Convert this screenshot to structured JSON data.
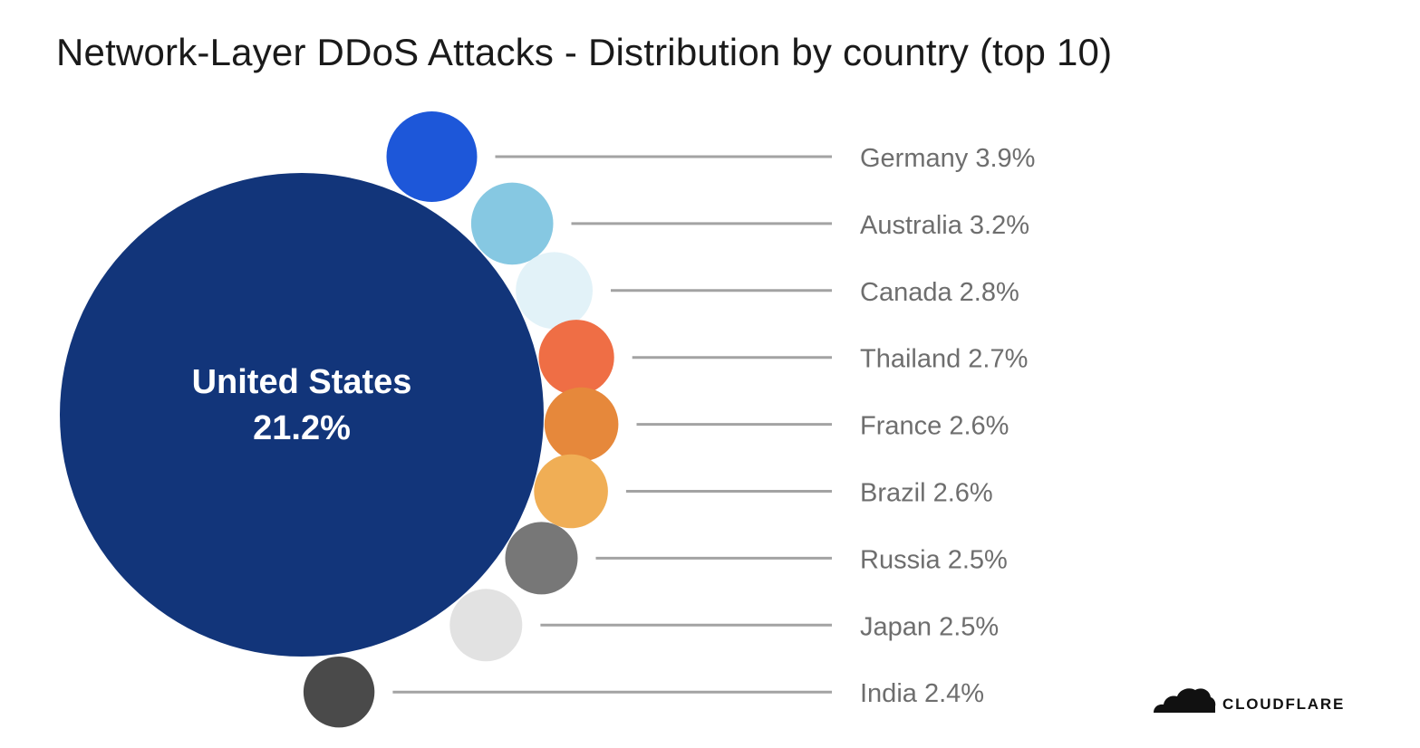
{
  "title": "Network-Layer DDoS Attacks - Distribution by country (top 10)",
  "brand": {
    "name": "CLOUDFLARE",
    "logo_icon": "cloud-icon",
    "color": "#111111"
  },
  "chart_data": {
    "type": "bubble",
    "title": "Network-Layer DDoS Attacks - Distribution by country (top 10)",
    "unit": "%",
    "points": [
      {
        "country": "United States",
        "value": 21.2,
        "label": "21.2%",
        "color": "#12357a"
      },
      {
        "country": "Germany",
        "value": 3.9,
        "label": "Germany 3.9%",
        "color": "#1d57d9"
      },
      {
        "country": "Australia",
        "value": 3.2,
        "label": "Australia 3.2%",
        "color": "#86c8e2"
      },
      {
        "country": "Canada",
        "value": 2.8,
        "label": "Canada 2.8%",
        "color": "#e2f2f8"
      },
      {
        "country": "Thailand",
        "value": 2.7,
        "label": "Thailand 2.7%",
        "color": "#ef6e45"
      },
      {
        "country": "France",
        "value": 2.6,
        "label": "France 2.6%",
        "color": "#e6883b"
      },
      {
        "country": "Brazil",
        "value": 2.6,
        "label": "Brazil 2.6%",
        "color": "#f0ae55"
      },
      {
        "country": "Russia",
        "value": 2.5,
        "label": "Russia 2.5%",
        "color": "#777777"
      },
      {
        "country": "Japan",
        "value": 2.5,
        "label": "Japan 2.5%",
        "color": "#e2e2e2"
      },
      {
        "country": "India",
        "value": 2.4,
        "label": "India 2.4%",
        "color": "#4a4a4a"
      }
    ]
  }
}
